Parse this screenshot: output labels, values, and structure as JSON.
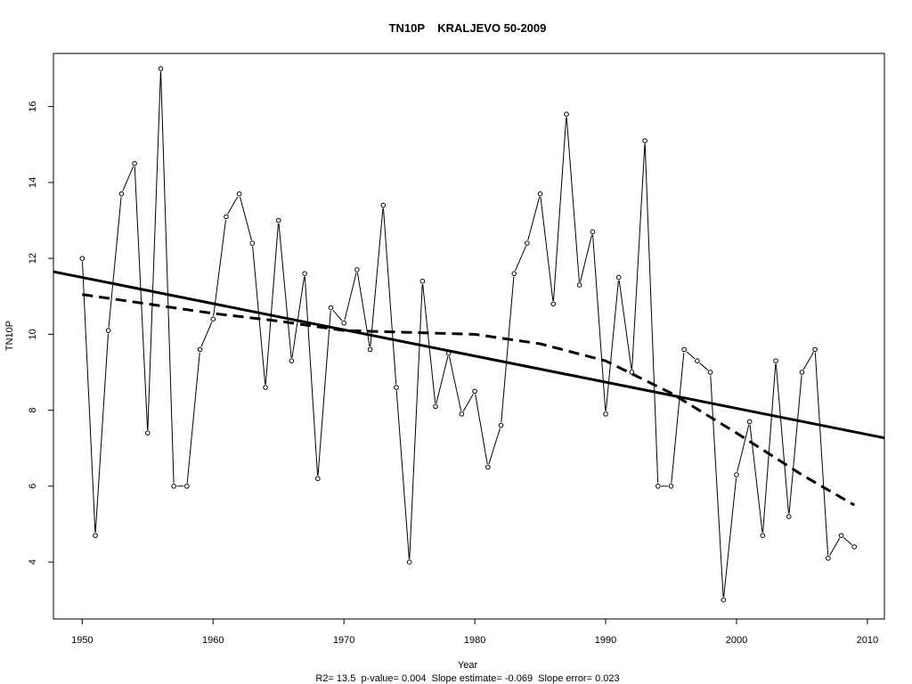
{
  "chart_data": {
    "type": "line",
    "title": "TN10P    KRALJEVO 50-2009",
    "xlabel": "Year",
    "ylabel": "TN10P",
    "stats_text": "R2= 13.5  p-value= 0.004  Slope estimate= -0.069  Slope error= 0.023",
    "xlim": [
      1947.8,
      2011.3
    ],
    "ylim": [
      2.5,
      17.4
    ],
    "x_ticks": [
      1950,
      1960,
      1970,
      1980,
      1990,
      2000,
      2010
    ],
    "y_ticks": [
      4,
      6,
      8,
      10,
      12,
      14,
      16
    ],
    "x_tick_labels": [
      "1950",
      "1960",
      "1970",
      "1980",
      "1990",
      "2000",
      "2010"
    ],
    "y_tick_labels": [
      "4",
      "6",
      "8",
      "10",
      "12",
      "14",
      "16"
    ],
    "series": [
      {
        "style": "line-with-open-circles",
        "x": [
          1950,
          1951,
          1952,
          1953,
          1954,
          1955,
          1956,
          1957,
          1958,
          1959,
          1960,
          1961,
          1962,
          1963,
          1964,
          1965,
          1966,
          1967,
          1968,
          1969,
          1970,
          1971,
          1972,
          1973,
          1974,
          1975,
          1976,
          1977,
          1978,
          1979,
          1980,
          1981,
          1982,
          1983,
          1984,
          1985,
          1986,
          1987,
          1988,
          1989,
          1990,
          1991,
          1992,
          1993,
          1994,
          1995,
          1996,
          1997,
          1998,
          1999,
          2000,
          2001,
          2002,
          2003,
          2004,
          2005,
          2006,
          2007,
          2008,
          2009
        ],
        "y": [
          12.0,
          4.7,
          10.1,
          13.7,
          14.5,
          7.4,
          17.0,
          6.0,
          6.0,
          9.6,
          10.4,
          13.1,
          13.7,
          12.4,
          8.6,
          13.0,
          9.3,
          11.6,
          6.2,
          10.7,
          10.3,
          11.7,
          9.6,
          13.4,
          8.6,
          4.0,
          11.4,
          8.1,
          9.5,
          7.9,
          8.5,
          6.5,
          7.6,
          11.6,
          12.4,
          13.7,
          10.8,
          15.8,
          11.3,
          12.7,
          7.9,
          11.5,
          9.0,
          15.1,
          6.0,
          6.0,
          9.6,
          9.3,
          9.0,
          3.0,
          6.3,
          7.7,
          4.7,
          9.3,
          5.2,
          9.0,
          9.6,
          4.1,
          4.7,
          4.4
        ]
      },
      {
        "style": "solid-linear-trend",
        "x": [
          1947.8,
          2011.3
        ],
        "y": [
          11.65,
          7.27
        ]
      },
      {
        "style": "dashed-smooth-trend",
        "x": [
          1950,
          1955,
          1960,
          1965,
          1970,
          1975,
          1980,
          1985,
          1990,
          1995,
          2000,
          2005,
          2009
        ],
        "y": [
          11.05,
          10.8,
          10.55,
          10.35,
          10.1,
          10.05,
          10.0,
          9.75,
          9.3,
          8.45,
          7.4,
          6.3,
          5.5
        ]
      }
    ]
  }
}
